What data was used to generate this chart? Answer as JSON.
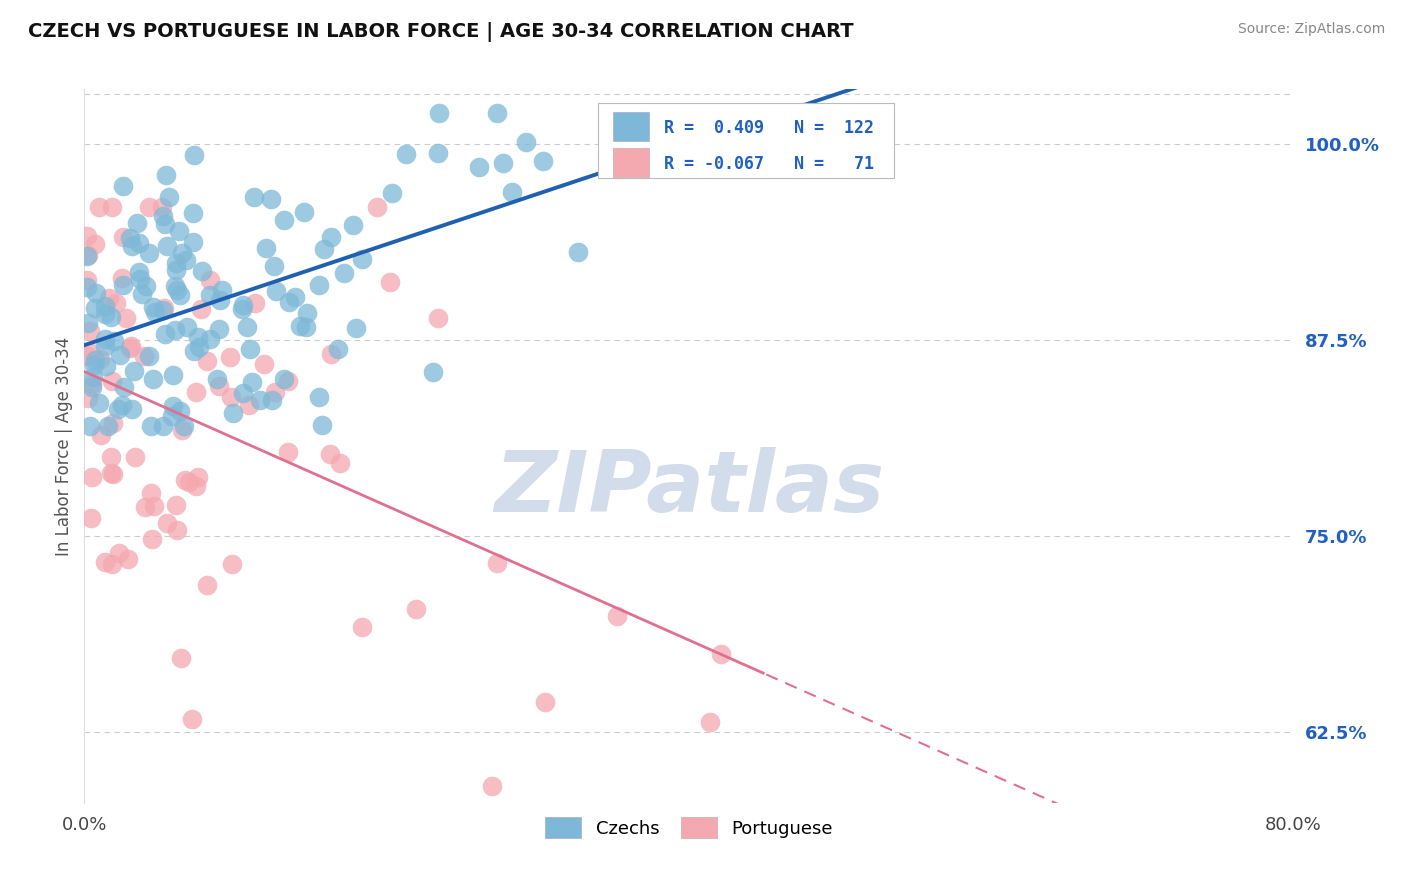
{
  "title": "CZECH VS PORTUGUESE IN LABOR FORCE | AGE 30-34 CORRELATION CHART",
  "source_text": "Source: ZipAtlas.com",
  "ylabel": "In Labor Force | Age 30-34",
  "xlim": [
    0.0,
    80.0
  ],
  "ylim": [
    58.0,
    103.5
  ],
  "yticks": [
    62.5,
    75.0,
    87.5,
    100.0
  ],
  "ytick_labels": [
    "62.5%",
    "75.0%",
    "87.5%",
    "100.0%"
  ],
  "xtick_labels": [
    "0.0%",
    "80.0%"
  ],
  "czech_color": "#7db8d8",
  "portuguese_color": "#f4a8b0",
  "czech_R": 0.409,
  "czech_N": 122,
  "portuguese_R": -0.067,
  "portuguese_N": 71,
  "legend_czech": "Czechs",
  "legend_portuguese": "Portuguese",
  "background_color": "#ffffff",
  "grid_color": "#cccccc",
  "watermark": "ZIPatlas",
  "watermark_color": "#cdd9e8",
  "trend_blue": "#2060b0",
  "trend_pink": "#e07090",
  "right_tick_color": "#2060c0",
  "portuguese_solid_end": 45.0
}
